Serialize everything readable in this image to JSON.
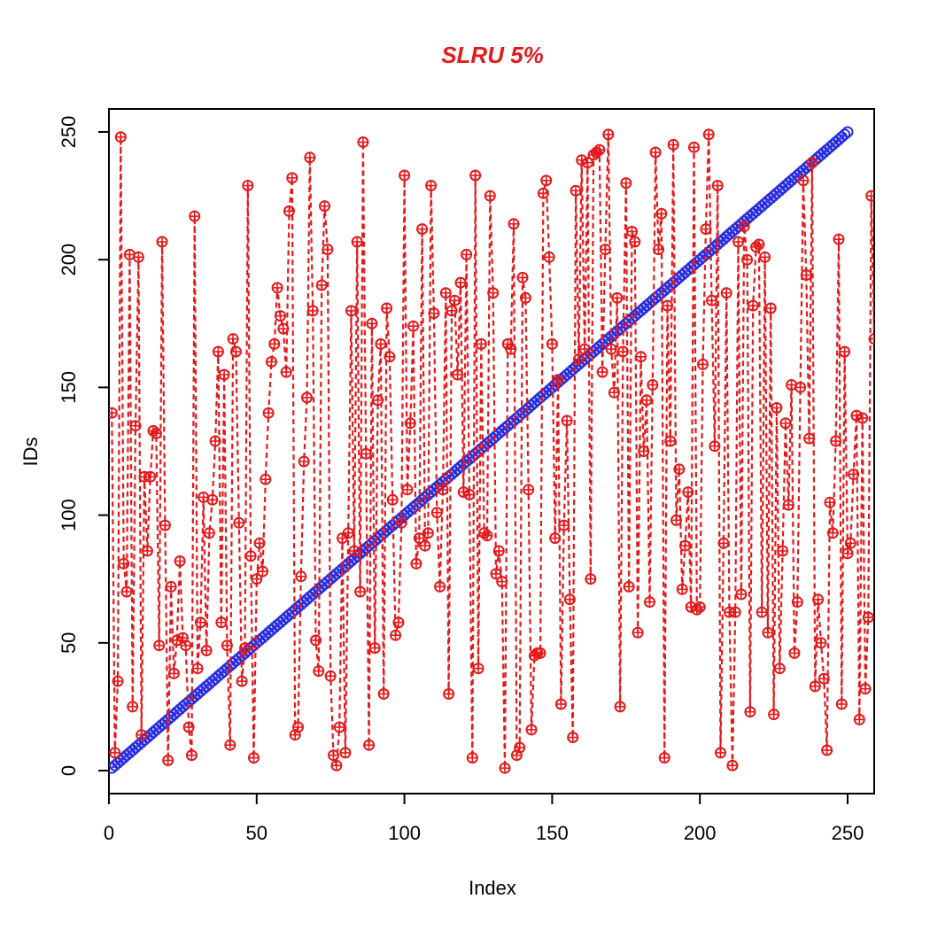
{
  "chart_data": {
    "type": "line",
    "title": "SLRU 5%",
    "xlabel": "Index",
    "ylabel": "IDs",
    "xlim": [
      0,
      259
    ],
    "ylim": [
      -9,
      259
    ],
    "xticks": [
      0,
      50,
      100,
      150,
      200,
      250
    ],
    "yticks": [
      0,
      50,
      100,
      150,
      200,
      250
    ],
    "grid": false,
    "series": [
      {
        "color": "#e31a1c",
        "marker": "circle-cross",
        "linestyle": "dashed",
        "x": [
          1,
          2,
          3,
          4,
          5,
          6,
          7,
          8,
          9,
          10,
          11,
          12,
          13,
          14,
          15,
          16,
          17,
          18,
          19,
          20,
          21,
          22,
          23,
          24,
          25,
          26,
          27,
          28,
          29,
          30,
          31,
          32,
          33,
          34,
          35,
          36,
          37,
          38,
          39,
          40,
          41,
          42,
          43,
          44,
          45,
          46,
          47,
          48,
          49,
          50,
          51,
          52,
          53,
          54,
          55,
          56,
          57,
          58,
          59,
          60,
          61,
          62,
          63,
          64,
          65,
          66,
          67,
          68,
          69,
          70,
          71,
          72,
          73,
          74,
          75,
          76,
          77,
          78,
          79,
          80,
          81,
          82,
          83,
          84,
          85,
          86,
          87,
          88,
          89,
          90,
          91,
          92,
          93,
          94,
          95,
          96,
          97,
          98,
          99,
          100,
          101,
          102,
          103,
          104,
          105,
          106,
          107,
          108,
          109,
          110,
          111,
          112,
          113,
          114,
          115,
          116,
          117,
          118,
          119,
          120,
          121,
          122,
          123,
          124,
          125,
          126,
          127,
          128,
          129,
          130,
          131,
          132,
          133,
          134,
          135,
          136,
          137,
          138,
          139,
          140,
          141,
          142,
          143,
          144,
          145,
          146,
          147,
          148,
          149,
          150,
          151,
          152,
          153,
          154,
          155,
          156,
          157,
          158,
          159,
          160,
          161,
          162,
          163,
          164,
          165,
          166,
          167,
          168,
          169,
          170,
          171,
          172,
          173,
          174,
          175,
          176,
          177,
          178,
          179,
          180,
          181,
          182,
          183,
          184,
          185,
          186,
          187,
          188,
          189,
          190,
          191,
          192,
          193,
          194,
          195,
          196,
          197,
          198,
          199,
          200,
          201,
          202,
          203,
          204,
          205,
          206,
          207,
          208,
          209,
          210,
          211,
          212,
          213,
          214,
          215,
          216,
          217,
          218,
          219,
          220,
          221,
          222,
          223,
          224,
          225,
          226,
          227,
          228,
          229,
          230,
          231,
          232,
          233,
          234,
          235,
          236,
          237,
          238,
          239,
          240,
          241,
          242,
          243,
          244,
          245,
          246,
          247,
          248,
          249,
          250,
          251,
          252,
          253,
          254,
          255,
          256,
          257,
          258,
          259
        ],
        "values": [
          140,
          7,
          35,
          248,
          81,
          70,
          202,
          25,
          135,
          201,
          14,
          115,
          86,
          115,
          133,
          132,
          49,
          207,
          96,
          4,
          72,
          38,
          51,
          82,
          52,
          49,
          17,
          6,
          217,
          40,
          58,
          107,
          47,
          93,
          106,
          129,
          164,
          58,
          155,
          49,
          10,
          169,
          164,
          97,
          35,
          48,
          229,
          84,
          5,
          75,
          89,
          78,
          114,
          140,
          160,
          167,
          189,
          178,
          173,
          156,
          219,
          232,
          14,
          17,
          76,
          121,
          146,
          240,
          180,
          51,
          39,
          190,
          221,
          204,
          37,
          6,
          2,
          17,
          91,
          7,
          93,
          180,
          86,
          207,
          70,
          246,
          124,
          10,
          175,
          48,
          145,
          167,
          30,
          181,
          162,
          106,
          53,
          58,
          97,
          233,
          110,
          136,
          174,
          81,
          91,
          212,
          88,
          93,
          229,
          179,
          101,
          72,
          110,
          187,
          30,
          180,
          184,
          155,
          191,
          109,
          202,
          108,
          5,
          233,
          40,
          167,
          93,
          92,
          225,
          187,
          77,
          86,
          74,
          1,
          167,
          165,
          214,
          6,
          9,
          193,
          185,
          110,
          16,
          45,
          46,
          46,
          226,
          231,
          201,
          167,
          91,
          153,
          26,
          96,
          137,
          67,
          13,
          227,
          161,
          239,
          165,
          238,
          75,
          241,
          242,
          243,
          156,
          204,
          249,
          165,
          148,
          185,
          25,
          164,
          230,
          72,
          211,
          207,
          54,
          162,
          125,
          145,
          66,
          151,
          242,
          204,
          218,
          5,
          182,
          129,
          245,
          98,
          118,
          71,
          88,
          109,
          64,
          244,
          63,
          64,
          159,
          212,
          249,
          184,
          127,
          229,
          7,
          89,
          187,
          62,
          2,
          62,
          207,
          69,
          213,
          200,
          23,
          182,
          205,
          206,
          62,
          201,
          54,
          181,
          22,
          142,
          40,
          86,
          136,
          104,
          151,
          46,
          66,
          150,
          231,
          194,
          130,
          238,
          33,
          67,
          50,
          36,
          8,
          105,
          93,
          129,
          208,
          26,
          164,
          85,
          89,
          116,
          139,
          20,
          138,
          32,
          60,
          225,
          169
        ]
      },
      {
        "color": "#2a2ee0",
        "marker": "circle",
        "linestyle": "dashed",
        "x_range": [
          1,
          250
        ],
        "values_equal_x": true
      }
    ]
  }
}
